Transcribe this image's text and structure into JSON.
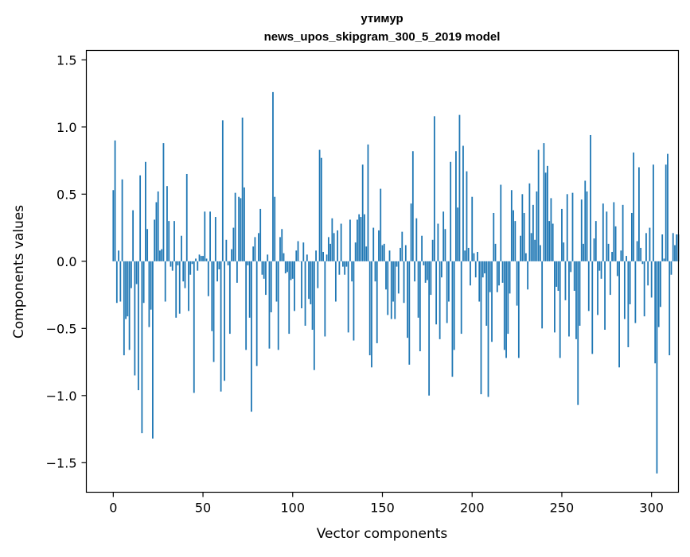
{
  "chart_data": {
    "type": "bar",
    "title_line1": "утимур",
    "title_line2": "news_upos_skipgram_300_5_2019 model",
    "xlabel": "Vector components",
    "ylabel": "Components values",
    "xlim": [
      -15,
      315
    ],
    "ylim": [
      -1.72,
      1.57
    ],
    "xticks": [
      0,
      50,
      100,
      150,
      200,
      250,
      300
    ],
    "yticks": [
      -1.5,
      -1.0,
      -0.5,
      0.0,
      0.5,
      1.0,
      1.5
    ],
    "xtick_labels": [
      "0",
      "50",
      "100",
      "150",
      "200",
      "250",
      "300"
    ],
    "ytick_labels": [
      "−1.5",
      "−1.0",
      "−0.5",
      "0.0",
      "0.5",
      "1.0",
      "1.5"
    ],
    "bar_color": "#1f77b4",
    "values": [
      0.53,
      0.9,
      -0.31,
      0.08,
      -0.3,
      0.61,
      -0.7,
      -0.43,
      -0.41,
      -0.66,
      -0.2,
      0.38,
      -0.85,
      -0.17,
      -0.96,
      0.64,
      -1.28,
      -0.31,
      0.74,
      0.24,
      -0.49,
      -0.36,
      -1.32,
      0.31,
      0.44,
      0.52,
      0.08,
      0.09,
      0.88,
      -0.3,
      0.56,
      0.3,
      -0.04,
      -0.07,
      0.3,
      -0.42,
      -0.03,
      -0.39,
      0.19,
      -0.15,
      -0.2,
      0.65,
      -0.37,
      -0.1,
      -0.02,
      -0.98,
      0.02,
      -0.07,
      0.05,
      0.04,
      0.04,
      0.37,
      0.02,
      -0.26,
      0.37,
      -0.52,
      -0.75,
      0.33,
      -0.15,
      -0.06,
      -0.97,
      1.05,
      -0.89,
      0.16,
      -0.03,
      -0.54,
      0.09,
      0.25,
      0.51,
      -0.16,
      0.48,
      0.47,
      1.07,
      0.55,
      -0.66,
      -0.03,
      -0.42,
      -1.12,
      0.11,
      0.18,
      -0.78,
      0.21,
      0.39,
      -0.1,
      -0.13,
      -0.25,
      0.05,
      -0.65,
      -0.38,
      1.26,
      0.48,
      -0.3,
      -0.66,
      0.18,
      0.24,
      0.06,
      -0.09,
      -0.08,
      -0.54,
      -0.14,
      -0.13,
      -0.37,
      0.08,
      0.15,
      0.0,
      -0.35,
      0.14,
      -0.48,
      0.05,
      -0.28,
      -0.32,
      -0.51,
      -0.81,
      0.08,
      -0.2,
      0.83,
      0.77,
      0.07,
      -0.56,
      0.05,
      0.18,
      0.13,
      0.32,
      0.21,
      -0.3,
      0.23,
      -0.1,
      0.28,
      -0.04,
      -0.1,
      -0.04,
      -0.53,
      0.31,
      -0.15,
      -0.59,
      0.14,
      0.31,
      0.35,
      0.33,
      0.72,
      0.35,
      0.11,
      0.87,
      -0.7,
      -0.79,
      0.25,
      -0.15,
      -0.61,
      0.23,
      0.54,
      0.12,
      0.13,
      -0.21,
      -0.4,
      0.08,
      -0.43,
      -0.3,
      -0.43,
      -0.04,
      -0.24,
      0.1,
      0.22,
      -0.31,
      0.12,
      -0.57,
      -0.77,
      0.43,
      0.82,
      -0.15,
      0.32,
      -0.42,
      -0.67,
      0.19,
      -0.03,
      -0.16,
      -0.14,
      -1.0,
      -0.25,
      0.16,
      1.08,
      -0.47,
      0.28,
      -0.58,
      -0.12,
      0.37,
      0.24,
      -0.46,
      -0.3,
      0.74,
      -0.86,
      -0.66,
      0.82,
      0.4,
      1.09,
      -0.54,
      0.86,
      0.08,
      0.67,
      0.1,
      -0.18,
      0.48,
      0.06,
      -0.12,
      0.07,
      -0.3,
      -0.99,
      -0.12,
      -0.09,
      -0.48,
      -1.01,
      -0.23,
      -0.6,
      0.36,
      0.13,
      -0.23,
      -0.18,
      0.57,
      -0.16,
      -0.66,
      -0.72,
      -0.54,
      -0.24,
      0.53,
      0.38,
      0.3,
      -0.33,
      -0.72,
      0.19,
      0.5,
      0.36,
      0.06,
      -0.21,
      0.58,
      0.21,
      0.42,
      0.16,
      0.52,
      0.83,
      0.12,
      -0.5,
      0.88,
      0.66,
      0.71,
      0.3,
      0.47,
      0.28,
      -0.53,
      -0.19,
      -0.22,
      -0.72,
      0.39,
      0.14,
      -0.29,
      0.5,
      -0.56,
      -0.08,
      0.51,
      -0.22,
      -0.58,
      -1.07,
      -0.48,
      0.46,
      0.13,
      0.6,
      0.52,
      -0.37,
      0.94,
      -0.69,
      0.17,
      0.3,
      -0.4,
      -0.07,
      -0.13,
      0.43,
      -0.51,
      0.37,
      0.13,
      -0.25,
      0.07,
      0.44,
      0.26,
      -0.11,
      -0.79,
      0.08,
      0.42,
      -0.43,
      0.04,
      -0.64,
      -0.32,
      0.36,
      0.81,
      -0.46,
      0.15,
      0.7,
      0.1,
      -0.02,
      -0.41,
      0.21,
      -0.18,
      0.25,
      -0.27,
      0.72,
      -0.76,
      -1.58,
      -0.49,
      -0.34,
      0.2,
      0.02,
      0.72,
      0.8,
      -0.7,
      -0.1,
      0.21,
      0.12,
      0.2,
      0.2
    ]
  }
}
